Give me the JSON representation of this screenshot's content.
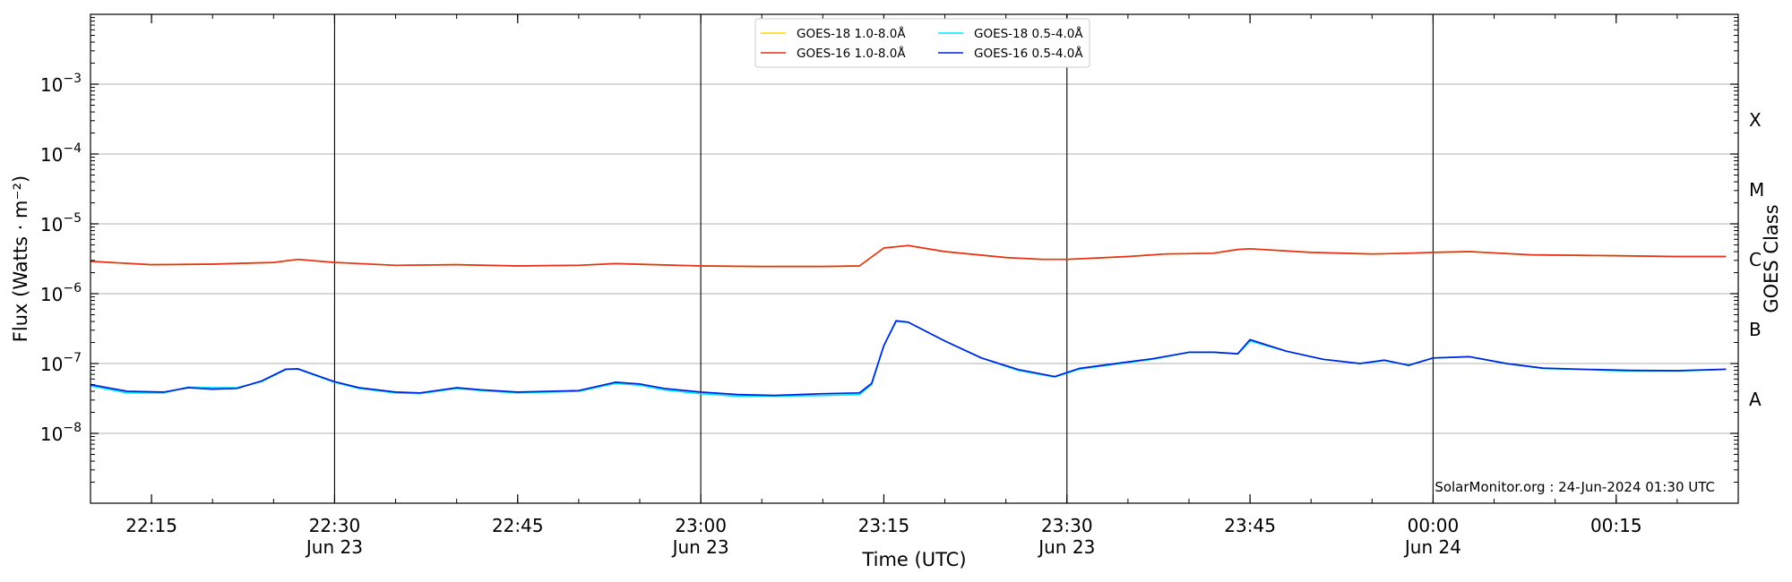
{
  "chart_data": {
    "type": "line",
    "xlabel": "Time (UTC)",
    "ylabel": "Flux (Watts · m⁻²)",
    "right_label": "GOES Class",
    "credit": "SolarMonitor.org : 24-Jun-2024 01:30 UTC",
    "xlim": [
      "2024-06-23 22:10",
      "2024-06-24 00:25"
    ],
    "ylim": [
      1e-09,
      0.01
    ],
    "yscale": "log",
    "grid": "horizontal",
    "legend_position": "top-center",
    "y_ticks": [
      {
        "value": 1e-08,
        "base": "10",
        "exp": "−8"
      },
      {
        "value": 1e-07,
        "base": "10",
        "exp": "−7"
      },
      {
        "value": 1e-06,
        "base": "10",
        "exp": "−6"
      },
      {
        "value": 1e-05,
        "base": "10",
        "exp": "−5"
      },
      {
        "value": 0.0001,
        "base": "10",
        "exp": "−4"
      },
      {
        "value": 0.001,
        "base": "10",
        "exp": "−3"
      }
    ],
    "x_ticks": [
      {
        "time": "2024-06-23 22:15",
        "label": "22:15",
        "date": ""
      },
      {
        "time": "2024-06-23 22:30",
        "label": "22:30",
        "date": "Jun 23"
      },
      {
        "time": "2024-06-23 22:45",
        "label": "22:45",
        "date": ""
      },
      {
        "time": "2024-06-23 23:00",
        "label": "23:00",
        "date": "Jun 23"
      },
      {
        "time": "2024-06-23 23:15",
        "label": "23:15",
        "date": ""
      },
      {
        "time": "2024-06-23 23:30",
        "label": "23:30",
        "date": "Jun 23"
      },
      {
        "time": "2024-06-23 23:45",
        "label": "23:45",
        "date": ""
      },
      {
        "time": "2024-06-24 00:00",
        "label": "00:00",
        "date": "Jun 24"
      },
      {
        "time": "2024-06-24 00:15",
        "label": "00:15",
        "date": ""
      }
    ],
    "vertical_lines": [
      "2024-06-23 22:30",
      "2024-06-23 23:00",
      "2024-06-23 23:30",
      "2024-06-24 00:00"
    ],
    "goes_classes": [
      {
        "label": "A",
        "lower": 1e-08
      },
      {
        "label": "B",
        "lower": 1e-07
      },
      {
        "label": "C",
        "lower": 1e-06
      },
      {
        "label": "M",
        "lower": 1e-05
      },
      {
        "label": "X",
        "lower": 0.0001
      }
    ],
    "series": [
      {
        "name": "GOES-18 1.0-8.0Å",
        "color": "#ffd700",
        "x": [
          "2024-06-23 22:10",
          "2024-06-23 22:15",
          "2024-06-23 22:20",
          "2024-06-23 22:25",
          "2024-06-23 22:27",
          "2024-06-23 22:30",
          "2024-06-23 22:35",
          "2024-06-23 22:40",
          "2024-06-23 22:45",
          "2024-06-23 22:50",
          "2024-06-23 22:53",
          "2024-06-23 23:00",
          "2024-06-23 23:05",
          "2024-06-23 23:10",
          "2024-06-23 23:13",
          "2024-06-23 23:15",
          "2024-06-23 23:17",
          "2024-06-23 23:20",
          "2024-06-23 23:25",
          "2024-06-23 23:28",
          "2024-06-23 23:30",
          "2024-06-23 23:35",
          "2024-06-23 23:38",
          "2024-06-23 23:42",
          "2024-06-23 23:44",
          "2024-06-23 23:45",
          "2024-06-23 23:50",
          "2024-06-23 23:55",
          "2024-06-23 23:58",
          "2024-06-24 00:00",
          "2024-06-24 00:03",
          "2024-06-24 00:08",
          "2024-06-24 00:15",
          "2024-06-24 00:20",
          "2024-06-24 00:24"
        ],
        "y": [
          2.9e-06,
          2.6e-06,
          2.65e-06,
          2.8e-06,
          3.1e-06,
          2.8e-06,
          2.55e-06,
          2.6e-06,
          2.5e-06,
          2.55e-06,
          2.7e-06,
          2.5e-06,
          2.45e-06,
          2.45e-06,
          2.5e-06,
          4.5e-06,
          4.9e-06,
          4e-06,
          3.3e-06,
          3.1e-06,
          3.1e-06,
          3.4e-06,
          3.7e-06,
          3.8e-06,
          4.3e-06,
          4.4e-06,
          3.9e-06,
          3.7e-06,
          3.8e-06,
          3.9e-06,
          4e-06,
          3.6e-06,
          3.5e-06,
          3.4e-06,
          3.4e-06
        ]
      },
      {
        "name": "GOES-16 1.0-8.0Å",
        "color": "#e8301c",
        "x": [
          "2024-06-23 22:10",
          "2024-06-23 22:15",
          "2024-06-23 22:20",
          "2024-06-23 22:25",
          "2024-06-23 22:27",
          "2024-06-23 22:30",
          "2024-06-23 22:35",
          "2024-06-23 22:40",
          "2024-06-23 22:45",
          "2024-06-23 22:50",
          "2024-06-23 22:53",
          "2024-06-23 23:00",
          "2024-06-23 23:05",
          "2024-06-23 23:10",
          "2024-06-23 23:13",
          "2024-06-23 23:15",
          "2024-06-23 23:17",
          "2024-06-23 23:20",
          "2024-06-23 23:25",
          "2024-06-23 23:28",
          "2024-06-23 23:30",
          "2024-06-23 23:35",
          "2024-06-23 23:38",
          "2024-06-23 23:42",
          "2024-06-23 23:44",
          "2024-06-23 23:45",
          "2024-06-23 23:50",
          "2024-06-23 23:55",
          "2024-06-23 23:58",
          "2024-06-24 00:00",
          "2024-06-24 00:03",
          "2024-06-24 00:08",
          "2024-06-24 00:15",
          "2024-06-24 00:20",
          "2024-06-24 00:24"
        ],
        "y": [
          2.9e-06,
          2.6e-06,
          2.65e-06,
          2.8e-06,
          3.1e-06,
          2.8e-06,
          2.55e-06,
          2.6e-06,
          2.5e-06,
          2.55e-06,
          2.7e-06,
          2.5e-06,
          2.45e-06,
          2.45e-06,
          2.5e-06,
          4.5e-06,
          4.9e-06,
          4e-06,
          3.3e-06,
          3.1e-06,
          3.1e-06,
          3.4e-06,
          3.7e-06,
          3.8e-06,
          4.3e-06,
          4.4e-06,
          3.9e-06,
          3.7e-06,
          3.8e-06,
          3.9e-06,
          4e-06,
          3.6e-06,
          3.5e-06,
          3.4e-06,
          3.4e-06
        ]
      },
      {
        "name": "GOES-18 0.5-4.0Å",
        "color": "#00e5ff",
        "x": [
          "2024-06-23 22:10",
          "2024-06-23 22:13",
          "2024-06-23 22:16",
          "2024-06-23 22:18",
          "2024-06-23 22:20",
          "2024-06-23 22:22",
          "2024-06-23 22:24",
          "2024-06-23 22:26",
          "2024-06-23 22:27",
          "2024-06-23 22:30",
          "2024-06-23 22:32",
          "2024-06-23 22:35",
          "2024-06-23 22:37",
          "2024-06-23 22:40",
          "2024-06-23 22:42",
          "2024-06-23 22:45",
          "2024-06-23 22:50",
          "2024-06-23 22:53",
          "2024-06-23 22:55",
          "2024-06-23 22:57",
          "2024-06-23 23:00",
          "2024-06-23 23:03",
          "2024-06-23 23:06",
          "2024-06-23 23:10",
          "2024-06-23 23:13",
          "2024-06-23 23:14",
          "2024-06-23 23:15",
          "2024-06-23 23:16",
          "2024-06-23 23:17",
          "2024-06-23 23:20",
          "2024-06-23 23:23",
          "2024-06-23 23:26",
          "2024-06-23 23:29",
          "2024-06-23 23:31",
          "2024-06-23 23:34",
          "2024-06-23 23:37",
          "2024-06-23 23:40",
          "2024-06-23 23:42",
          "2024-06-23 23:44",
          "2024-06-23 23:45",
          "2024-06-23 23:48",
          "2024-06-23 23:51",
          "2024-06-23 23:54",
          "2024-06-23 23:56",
          "2024-06-23 23:58",
          "2024-06-24 00:00",
          "2024-06-24 00:03",
          "2024-06-24 00:06",
          "2024-06-24 00:09",
          "2024-06-24 00:12",
          "2024-06-24 00:16",
          "2024-06-24 00:20",
          "2024-06-24 00:24"
        ],
        "y": [
          4.8e-08,
          3.8e-08,
          3.8e-08,
          4.6e-08,
          4.5e-08,
          4.5e-08,
          5.5e-08,
          8.2e-08,
          8.3e-08,
          5.4e-08,
          4.4e-08,
          3.8e-08,
          3.7e-08,
          4.4e-08,
          4.1e-08,
          3.8e-08,
          4e-08,
          5.2e-08,
          4.9e-08,
          4.2e-08,
          3.7e-08,
          3.4e-08,
          3.4e-08,
          3.5e-08,
          3.6e-08,
          5e-08,
          1.8e-07,
          4e-07,
          3.9e-07,
          2.1e-07,
          1.2e-07,
          8e-08,
          6.4e-08,
          8.3e-08,
          9.8e-08,
          1.15e-07,
          1.45e-07,
          1.45e-07,
          1.38e-07,
          2.1e-07,
          1.5e-07,
          1.15e-07,
          1e-07,
          1.1e-07,
          9.5e-08,
          1.2e-07,
          1.25e-07,
          1e-07,
          8.5e-08,
          8.2e-08,
          7.8e-08,
          7.8e-08,
          8.2e-08
        ]
      },
      {
        "name": "GOES-16 0.5-4.0Å",
        "color": "#0022dd",
        "x": [
          "2024-06-23 22:10",
          "2024-06-23 22:13",
          "2024-06-23 22:16",
          "2024-06-23 22:18",
          "2024-06-23 22:20",
          "2024-06-23 22:22",
          "2024-06-23 22:24",
          "2024-06-23 22:26",
          "2024-06-23 22:27",
          "2024-06-23 22:30",
          "2024-06-23 22:32",
          "2024-06-23 22:35",
          "2024-06-23 22:37",
          "2024-06-23 22:40",
          "2024-06-23 22:42",
          "2024-06-23 22:45",
          "2024-06-23 22:50",
          "2024-06-23 22:53",
          "2024-06-23 22:55",
          "2024-06-23 22:57",
          "2024-06-23 23:00",
          "2024-06-23 23:03",
          "2024-06-23 23:06",
          "2024-06-23 23:10",
          "2024-06-23 23:13",
          "2024-06-23 23:14",
          "2024-06-23 23:15",
          "2024-06-23 23:16",
          "2024-06-23 23:17",
          "2024-06-23 23:20",
          "2024-06-23 23:23",
          "2024-06-23 23:26",
          "2024-06-23 23:29",
          "2024-06-23 23:31",
          "2024-06-23 23:34",
          "2024-06-23 23:37",
          "2024-06-23 23:40",
          "2024-06-23 23:42",
          "2024-06-23 23:44",
          "2024-06-23 23:45",
          "2024-06-23 23:48",
          "2024-06-23 23:51",
          "2024-06-23 23:54",
          "2024-06-23 23:56",
          "2024-06-23 23:58",
          "2024-06-24 00:00",
          "2024-06-24 00:03",
          "2024-06-24 00:06",
          "2024-06-24 00:09",
          "2024-06-24 00:12",
          "2024-06-24 00:16",
          "2024-06-24 00:20",
          "2024-06-24 00:24"
        ],
        "y": [
          5e-08,
          4e-08,
          3.9e-08,
          4.5e-08,
          4.3e-08,
          4.4e-08,
          5.6e-08,
          8.3e-08,
          8.4e-08,
          5.5e-08,
          4.5e-08,
          3.9e-08,
          3.8e-08,
          4.5e-08,
          4.2e-08,
          3.9e-08,
          4.1e-08,
          5.4e-08,
          5.1e-08,
          4.4e-08,
          3.9e-08,
          3.6e-08,
          3.5e-08,
          3.7e-08,
          3.8e-08,
          5.2e-08,
          1.8e-07,
          4.1e-07,
          3.9e-07,
          2.1e-07,
          1.2e-07,
          8.2e-08,
          6.5e-08,
          8.5e-08,
          1e-07,
          1.17e-07,
          1.45e-07,
          1.45e-07,
          1.38e-07,
          2.2e-07,
          1.5e-07,
          1.15e-07,
          1e-07,
          1.12e-07,
          9.4e-08,
          1.2e-07,
          1.25e-07,
          1e-07,
          8.6e-08,
          8.3e-08,
          8e-08,
          7.9e-08,
          8.3e-08
        ]
      }
    ]
  }
}
